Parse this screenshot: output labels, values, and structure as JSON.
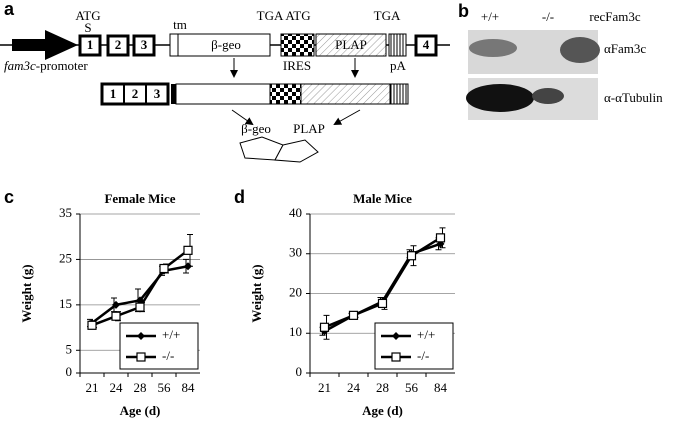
{
  "panel_labels": {
    "a": "a",
    "b": "b",
    "c": "c",
    "d": "d"
  },
  "diagram": {
    "atg1": "ATG",
    "s": "S",
    "tm": "tm",
    "tga1": "TGA",
    "atg2": "ATG",
    "tga2": "TGA",
    "bgeo": "β-geo",
    "ires": "IRES",
    "plap": "PLAP",
    "pa": "pA",
    "promoter_gene": "fam3c",
    "promoter_suffix": "-promoter",
    "exon1": "1",
    "exon2": "2",
    "exon3": "3",
    "exon4": "4",
    "row2_exon1": "1",
    "row2_exon2": "2",
    "row2_exon3": "3",
    "product_bgeo": "β-geo",
    "product_plap": "PLAP"
  },
  "blot": {
    "lane1": "+/+",
    "lane2": "-/-",
    "lane3": "recFam3c",
    "row1": "αFam3c",
    "row2": "α-αTubulin"
  },
  "chart_data": [
    {
      "type": "line",
      "title": "Female Mice",
      "x_label": "Age (d)",
      "y_label": "Weight (g)",
      "categories": [
        "21",
        "24",
        "28",
        "56",
        "84"
      ],
      "ylim": [
        0,
        35
      ],
      "yticks": [
        0,
        5,
        15,
        25,
        35
      ],
      "grid": true,
      "legend": "lower-right",
      "series": [
        {
          "name": "+/+",
          "color": "#000000",
          "marker": "diamond",
          "values": [
            11,
            15,
            16,
            22.5,
            23.5
          ],
          "errors": [
            0.8,
            1.5,
            2.5,
            1,
            1.5
          ]
        },
        {
          "name": "-/-",
          "color": "#000000",
          "marker": "square",
          "values": [
            10.5,
            12.5,
            14.5,
            23,
            27
          ],
          "errors": [
            0.5,
            1,
            1,
            1,
            3.5
          ]
        }
      ]
    },
    {
      "type": "line",
      "title": "Male Mice",
      "x_label": "Age (d)",
      "y_label": "Weight (g)",
      "categories": [
        "21",
        "24",
        "28",
        "56",
        "84"
      ],
      "ylim": [
        0,
        40
      ],
      "yticks": [
        0,
        10,
        20,
        30,
        40
      ],
      "grid": true,
      "legend": "lower-right",
      "series": [
        {
          "name": "+/+",
          "color": "#000000",
          "marker": "diamond",
          "values": [
            10.5,
            14.5,
            18,
            30,
            32.5
          ],
          "errors": [
            1,
            0.5,
            1,
            1,
            1.5
          ]
        },
        {
          "name": "-/-",
          "color": "#000000",
          "marker": "square",
          "values": [
            11.5,
            14.5,
            17.5,
            29.5,
            34
          ],
          "errors": [
            3,
            0.5,
            1.5,
            2.5,
            2.5
          ]
        }
      ]
    }
  ]
}
